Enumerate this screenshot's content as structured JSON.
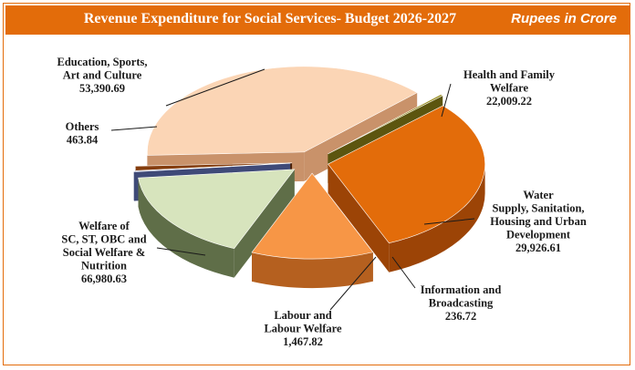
{
  "header": {
    "title": "Revenue Expenditure for Social Services- Budget 2026-2027",
    "unit": "Rupees in Crore"
  },
  "chart_data": {
    "type": "pie",
    "title": "Revenue Expenditure for Social Services- Budget 2026-2027",
    "unit": "Rupees in Crore",
    "slices": [
      {
        "name": "Education, Sports, Art and Culture",
        "label_lines": [
          "Education, Sports,",
          "Art and  Culture"
        ],
        "value": 53390.69,
        "value_label": "53,390.69",
        "color": "#e36c0a",
        "side": "#9c4406"
      },
      {
        "name": "Health and Family Welfare",
        "label_lines": [
          "Health and Family",
          "Welfare"
        ],
        "value": 22009.22,
        "value_label": "22,009.22",
        "color": "#f79646",
        "side": "#b5601f"
      },
      {
        "name": "Water Supply, Sanitation, Housing and Urban Development",
        "label_lines": [
          "Water",
          "Supply, Sanitation,",
          "Housing and Urban",
          "Development"
        ],
        "value": 29926.61,
        "value_label": "29,926.61",
        "color": "#d7e4bd",
        "side": "#5f6e48"
      },
      {
        "name": "Information and Broadcasting",
        "label_lines": [
          "Information and",
          "Broadcasting"
        ],
        "value": 236.72,
        "value_label": "236.72",
        "color": "#6f7fb8",
        "side": "#3f4a78"
      },
      {
        "name": "Labour and Labour Welfare",
        "label_lines": [
          "Labour and",
          "Labour Welfare"
        ],
        "value": 1467.82,
        "value_label": "1,467.82",
        "color": "#843c0c",
        "side": "#4a1f05"
      },
      {
        "name": "Welfare of SC, ST, OBC and Social Welfare & Nutrition",
        "label_lines": [
          "Welfare of",
          "SC, ST, OBC and",
          "Social Welfare &",
          "Nutrition"
        ],
        "value": 66980.63,
        "value_label": "66,980.63",
        "color": "#fbd5b5",
        "side": "#c9926a"
      },
      {
        "name": "Others",
        "label_lines": [
          "Others"
        ],
        "value": 463.84,
        "value_label": "463.84",
        "color": "#948a1c",
        "side": "#5c550f"
      }
    ]
  }
}
